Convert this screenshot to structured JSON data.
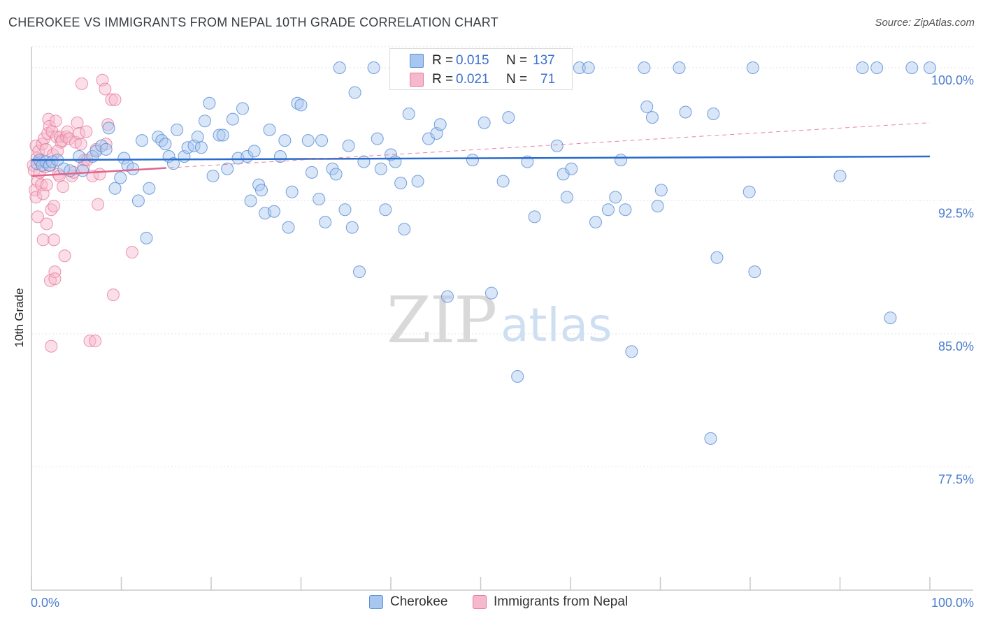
{
  "title": "CHEROKEE VS IMMIGRANTS FROM NEPAL 10TH GRADE CORRELATION CHART",
  "source": "Source: ZipAtlas.com",
  "watermark": {
    "zip": "ZIP",
    "atlas": "atlas"
  },
  "colors": {
    "blue_fill": "#a8c7f0",
    "blue_stroke": "#5b8fd6",
    "blue_line": "#2a6bcc",
    "pink_fill": "#f6b8cc",
    "pink_stroke": "#e77a9c",
    "pink_line": "#e0648c",
    "axis_text": "#4a7ccc",
    "grid": "#dde3ea"
  },
  "stats": {
    "series1": {
      "r_label": "R =",
      "r_value": "0.015",
      "n_label": "N =",
      "n_value": "137"
    },
    "series2": {
      "r_label": "R =",
      "r_value": "0.021",
      "n_label": "N =",
      "n_value": "71"
    }
  },
  "legend": {
    "series1": "Cherokee",
    "series2": "Immigrants from Nepal"
  },
  "chart_data": {
    "type": "scatter",
    "title": "CHEROKEE VS IMMIGRANTS FROM NEPAL 10TH GRADE CORRELATION CHART",
    "xlabel": "",
    "ylabel": "10th Grade",
    "xlim": [
      0,
      100
    ],
    "ylim": [
      70.3,
      100.7
    ],
    "x_tick_labels": [
      "0.0%",
      "100.0%"
    ],
    "y_ticks": [
      77.5,
      85.0,
      92.5,
      100.0
    ],
    "y_tick_labels": [
      "77.5%",
      "85.0%",
      "92.5%",
      "100.0%"
    ],
    "series": [
      {
        "name": "Cherokee",
        "r": 0.015,
        "n": 137,
        "trend": {
          "x": [
            0,
            100
          ],
          "y": [
            94.8,
            95.0
          ]
        },
        "points": [
          [
            0.6,
            94.6
          ],
          [
            0.9,
            94.8
          ],
          [
            1.2,
            94.5
          ],
          [
            1.6,
            94.7
          ],
          [
            2.0,
            94.5
          ],
          [
            2.3,
            94.7
          ],
          [
            2.9,
            94.8
          ],
          [
            3.6,
            94.3
          ],
          [
            4.3,
            94.2
          ],
          [
            5.3,
            95.0
          ],
          [
            5.7,
            94.2
          ],
          [
            6.8,
            95.0
          ],
          [
            7.2,
            95.3
          ],
          [
            7.8,
            95.6
          ],
          [
            8.3,
            95.4
          ],
          [
            8.6,
            96.6
          ],
          [
            9.3,
            93.2
          ],
          [
            9.9,
            93.8
          ],
          [
            10.3,
            94.9
          ],
          [
            10.7,
            94.5
          ],
          [
            11.3,
            94.3
          ],
          [
            11.9,
            92.5
          ],
          [
            12.3,
            95.9
          ],
          [
            12.8,
            90.4
          ],
          [
            13.1,
            93.2
          ],
          [
            14.1,
            96.1
          ],
          [
            14.5,
            95.9
          ],
          [
            14.9,
            95.7
          ],
          [
            15.3,
            95.0
          ],
          [
            15.8,
            94.6
          ],
          [
            16.2,
            96.5
          ],
          [
            17.0,
            95.0
          ],
          [
            17.4,
            95.5
          ],
          [
            18.1,
            95.6
          ],
          [
            18.5,
            96.1
          ],
          [
            18.9,
            95.5
          ],
          [
            19.3,
            97.0
          ],
          [
            19.8,
            98.0
          ],
          [
            20.2,
            93.9
          ],
          [
            20.9,
            96.2
          ],
          [
            21.3,
            96.2
          ],
          [
            21.8,
            94.3
          ],
          [
            22.4,
            97.1
          ],
          [
            23.0,
            94.9
          ],
          [
            23.5,
            97.7
          ],
          [
            24.0,
            95.0
          ],
          [
            24.4,
            92.5
          ],
          [
            24.8,
            95.3
          ],
          [
            25.3,
            93.4
          ],
          [
            25.6,
            93.1
          ],
          [
            26.0,
            91.8
          ],
          [
            26.5,
            96.5
          ],
          [
            27.0,
            91.9
          ],
          [
            27.7,
            95.0
          ],
          [
            28.2,
            95.9
          ],
          [
            28.6,
            91.0
          ],
          [
            29.0,
            93.0
          ],
          [
            29.6,
            98.0
          ],
          [
            30.0,
            97.9
          ],
          [
            30.8,
            95.9
          ],
          [
            31.2,
            94.1
          ],
          [
            32.0,
            92.6
          ],
          [
            32.3,
            95.9
          ],
          [
            32.7,
            91.3
          ],
          [
            33.5,
            94.3
          ],
          [
            33.9,
            94.0
          ],
          [
            34.3,
            100.0
          ],
          [
            34.9,
            92.0
          ],
          [
            35.3,
            95.6
          ],
          [
            35.7,
            91.0
          ],
          [
            36.0,
            98.6
          ],
          [
            36.5,
            88.5
          ],
          [
            37.0,
            94.7
          ],
          [
            38.1,
            100.0
          ],
          [
            38.5,
            96.0
          ],
          [
            38.9,
            94.3
          ],
          [
            39.4,
            92.0
          ],
          [
            40.0,
            95.1
          ],
          [
            40.5,
            94.7
          ],
          [
            41.1,
            93.5
          ],
          [
            41.5,
            90.9
          ],
          [
            42.0,
            97.4
          ],
          [
            43.0,
            93.6
          ],
          [
            44.2,
            96.0
          ],
          [
            45.1,
            96.3
          ],
          [
            45.5,
            96.8
          ],
          [
            46.3,
            87.1
          ],
          [
            46.8,
            100.0
          ],
          [
            49.1,
            94.8
          ],
          [
            50.4,
            96.9
          ],
          [
            51.2,
            87.3
          ],
          [
            52.5,
            93.6
          ],
          [
            53.1,
            97.2
          ],
          [
            54.1,
            82.6
          ],
          [
            55.2,
            94.7
          ],
          [
            56.0,
            91.6
          ],
          [
            58.5,
            95.6
          ],
          [
            59.2,
            94.0
          ],
          [
            59.6,
            92.7
          ],
          [
            60.1,
            94.3
          ],
          [
            61.0,
            100.0
          ],
          [
            62.0,
            100.0
          ],
          [
            62.8,
            91.3
          ],
          [
            64.2,
            92.0
          ],
          [
            65.0,
            92.7
          ],
          [
            65.6,
            94.8
          ],
          [
            66.1,
            92.0
          ],
          [
            66.8,
            84.0
          ],
          [
            68.2,
            100.0
          ],
          [
            68.5,
            97.8
          ],
          [
            69.1,
            97.2
          ],
          [
            69.7,
            92.2
          ],
          [
            70.1,
            93.1
          ],
          [
            72.1,
            100.0
          ],
          [
            72.8,
            97.5
          ],
          [
            75.6,
            79.1
          ],
          [
            75.9,
            97.4
          ],
          [
            76.3,
            89.3
          ],
          [
            79.9,
            93.0
          ],
          [
            80.3,
            100.0
          ],
          [
            80.5,
            88.5
          ],
          [
            90.0,
            93.9
          ],
          [
            92.5,
            100.0
          ],
          [
            94.1,
            100.0
          ],
          [
            95.6,
            85.9
          ],
          [
            98.0,
            100.0
          ],
          [
            100.0,
            100.0
          ]
        ]
      },
      {
        "name": "Immigrants from Nepal",
        "r": 0.021,
        "n": 71,
        "trend": {
          "x": [
            0,
            100
          ],
          "y": [
            93.9,
            96.9
          ]
        },
        "trend_solid_to_x": 15,
        "points": [
          [
            0.2,
            94.5
          ],
          [
            0.3,
            94.2
          ],
          [
            0.4,
            93.1
          ],
          [
            0.5,
            95.6
          ],
          [
            0.5,
            92.7
          ],
          [
            0.6,
            94.9
          ],
          [
            0.7,
            93.6
          ],
          [
            0.7,
            91.6
          ],
          [
            0.8,
            95.3
          ],
          [
            0.9,
            94.1
          ],
          [
            1.0,
            94.7
          ],
          [
            1.1,
            93.4
          ],
          [
            1.2,
            95.7
          ],
          [
            1.3,
            92.9
          ],
          [
            1.3,
            90.3
          ],
          [
            1.4,
            96.0
          ],
          [
            1.5,
            94.4
          ],
          [
            1.6,
            95.4
          ],
          [
            1.7,
            93.4
          ],
          [
            1.7,
            91.2
          ],
          [
            1.8,
            96.3
          ],
          [
            1.9,
            97.1
          ],
          [
            2.0,
            96.7
          ],
          [
            2.1,
            94.5
          ],
          [
            2.1,
            88.0
          ],
          [
            2.2,
            92.0
          ],
          [
            2.2,
            84.3
          ],
          [
            2.3,
            96.4
          ],
          [
            2.4,
            95.1
          ],
          [
            2.5,
            92.2
          ],
          [
            2.5,
            90.3
          ],
          [
            2.6,
            88.5
          ],
          [
            2.6,
            88.1
          ],
          [
            2.7,
            97.0
          ],
          [
            2.8,
            96.1
          ],
          [
            2.9,
            95.3
          ],
          [
            3.0,
            94.0
          ],
          [
            3.1,
            93.9
          ],
          [
            3.2,
            96.1
          ],
          [
            3.3,
            95.8
          ],
          [
            3.4,
            95.9
          ],
          [
            3.5,
            93.3
          ],
          [
            3.7,
            89.4
          ],
          [
            3.9,
            96.1
          ],
          [
            4.0,
            96.4
          ],
          [
            4.2,
            96.0
          ],
          [
            4.5,
            93.9
          ],
          [
            4.7,
            94.1
          ],
          [
            4.9,
            95.8
          ],
          [
            5.1,
            96.9
          ],
          [
            5.3,
            96.3
          ],
          [
            5.5,
            95.7
          ],
          [
            5.6,
            99.1
          ],
          [
            5.8,
            94.4
          ],
          [
            5.9,
            94.8
          ],
          [
            6.1,
            96.4
          ],
          [
            6.2,
            94.8
          ],
          [
            6.5,
            84.6
          ],
          [
            6.8,
            93.9
          ],
          [
            7.1,
            84.6
          ],
          [
            7.2,
            95.4
          ],
          [
            7.4,
            92.3
          ],
          [
            7.6,
            94.0
          ],
          [
            7.9,
            99.3
          ],
          [
            8.2,
            98.8
          ],
          [
            8.3,
            95.7
          ],
          [
            8.5,
            96.8
          ],
          [
            8.9,
            98.2
          ],
          [
            9.1,
            87.2
          ],
          [
            9.3,
            98.2
          ],
          [
            11.2,
            89.6
          ]
        ]
      }
    ]
  }
}
